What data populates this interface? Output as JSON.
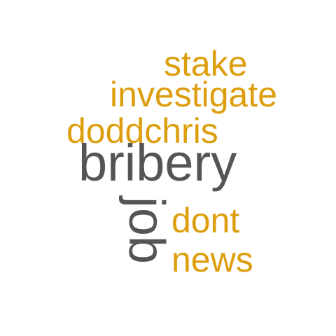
{
  "colors": {
    "background": "#ffffff",
    "accent": "#dd9e0d",
    "dark": "#555555"
  },
  "words": {
    "stake": "stake",
    "investigate": "investigate",
    "doddchris": "doddchris",
    "bribery": "bribery",
    "job": "job",
    "dont": "dont",
    "news": "news"
  }
}
